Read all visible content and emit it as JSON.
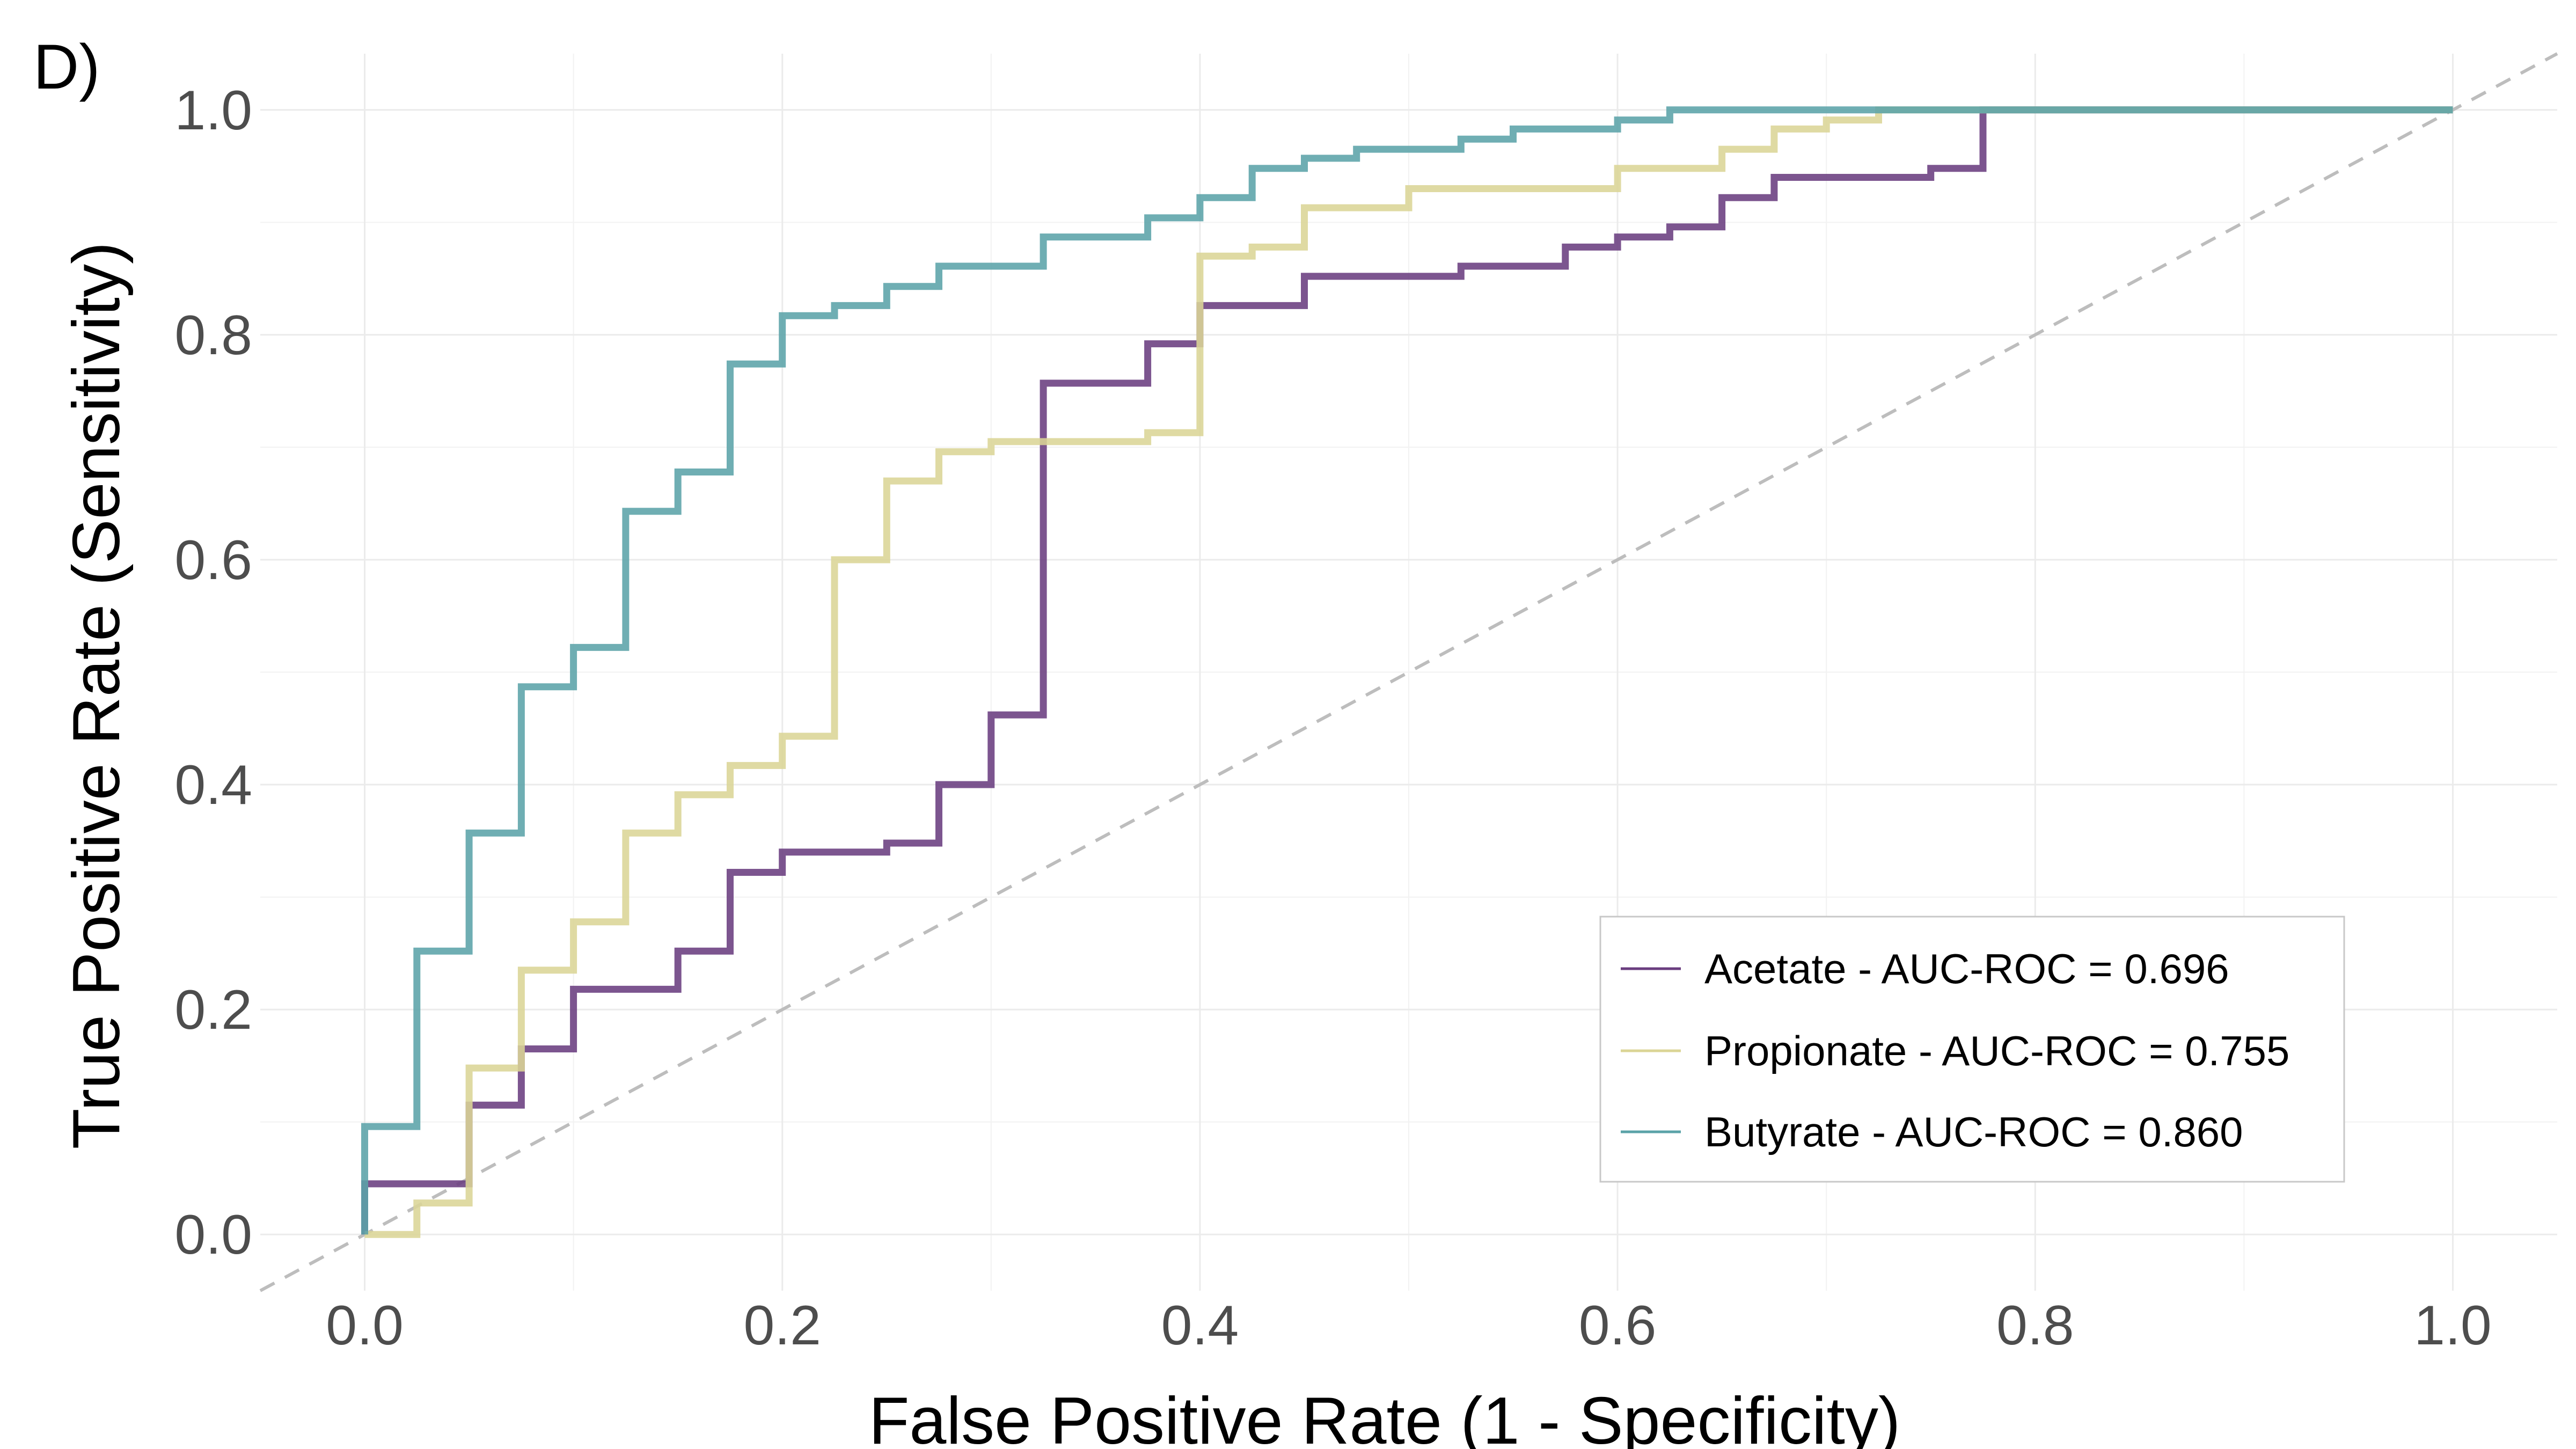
{
  "panel_label": "D)",
  "chart_data": {
    "type": "line",
    "title": "",
    "xlabel": "False Positive Rate (1 - Specificity)",
    "ylabel": "True Positive Rate (Sensitivity)",
    "xlim": [
      -0.05,
      1.05
    ],
    "ylim": [
      -0.05,
      1.05
    ],
    "x_ticks": [
      0.0,
      0.2,
      0.4,
      0.6,
      0.8,
      1.0
    ],
    "y_ticks": [
      0.0,
      0.2,
      0.4,
      0.6,
      0.8,
      1.0
    ],
    "x_tick_labels": [
      "0.0",
      "0.2",
      "0.4",
      "0.6",
      "0.8",
      "1.0"
    ],
    "y_tick_labels": [
      "0.0",
      "0.2",
      "0.4",
      "0.6",
      "0.8",
      "1.0"
    ],
    "grid": true,
    "diagonal_reference": true,
    "legend_position": "bottom-right",
    "series": [
      {
        "name": "Acetate - AUC-ROC = 0.696",
        "color": "#6a3d7f",
        "points": [
          [
            0.0,
            0.0
          ],
          [
            0.0,
            0.045
          ],
          [
            0.05,
            0.045
          ],
          [
            0.05,
            0.115
          ],
          [
            0.075,
            0.115
          ],
          [
            0.075,
            0.165
          ],
          [
            0.1,
            0.165
          ],
          [
            0.1,
            0.218
          ],
          [
            0.15,
            0.218
          ],
          [
            0.15,
            0.252
          ],
          [
            0.175,
            0.252
          ],
          [
            0.175,
            0.322
          ],
          [
            0.2,
            0.322
          ],
          [
            0.2,
            0.34
          ],
          [
            0.25,
            0.34
          ],
          [
            0.25,
            0.348
          ],
          [
            0.275,
            0.348
          ],
          [
            0.275,
            0.4
          ],
          [
            0.3,
            0.4
          ],
          [
            0.3,
            0.462
          ],
          [
            0.325,
            0.462
          ],
          [
            0.325,
            0.757
          ],
          [
            0.375,
            0.757
          ],
          [
            0.375,
            0.792
          ],
          [
            0.4,
            0.792
          ],
          [
            0.4,
            0.826
          ],
          [
            0.45,
            0.826
          ],
          [
            0.45,
            0.852
          ],
          [
            0.525,
            0.852
          ],
          [
            0.525,
            0.861
          ],
          [
            0.575,
            0.861
          ],
          [
            0.575,
            0.878
          ],
          [
            0.6,
            0.878
          ],
          [
            0.6,
            0.887
          ],
          [
            0.625,
            0.887
          ],
          [
            0.625,
            0.896
          ],
          [
            0.65,
            0.896
          ],
          [
            0.65,
            0.922
          ],
          [
            0.675,
            0.922
          ],
          [
            0.675,
            0.94
          ],
          [
            0.75,
            0.94
          ],
          [
            0.75,
            0.948
          ],
          [
            0.775,
            0.948
          ],
          [
            0.775,
            1.0
          ],
          [
            1.0,
            1.0
          ]
        ]
      },
      {
        "name": "Propionate - AUC-ROC = 0.755",
        "color": "#dbd596",
        "points": [
          [
            0.0,
            0.0
          ],
          [
            0.025,
            0.0
          ],
          [
            0.025,
            0.028
          ],
          [
            0.05,
            0.028
          ],
          [
            0.05,
            0.148
          ],
          [
            0.075,
            0.148
          ],
          [
            0.075,
            0.235
          ],
          [
            0.1,
            0.235
          ],
          [
            0.1,
            0.278
          ],
          [
            0.125,
            0.278
          ],
          [
            0.125,
            0.357
          ],
          [
            0.15,
            0.357
          ],
          [
            0.15,
            0.391
          ],
          [
            0.175,
            0.391
          ],
          [
            0.175,
            0.417
          ],
          [
            0.2,
            0.417
          ],
          [
            0.2,
            0.443
          ],
          [
            0.225,
            0.443
          ],
          [
            0.225,
            0.6
          ],
          [
            0.25,
            0.6
          ],
          [
            0.25,
            0.67
          ],
          [
            0.275,
            0.67
          ],
          [
            0.275,
            0.696
          ],
          [
            0.3,
            0.696
          ],
          [
            0.3,
            0.705
          ],
          [
            0.375,
            0.705
          ],
          [
            0.375,
            0.713
          ],
          [
            0.4,
            0.713
          ],
          [
            0.4,
            0.87
          ],
          [
            0.425,
            0.87
          ],
          [
            0.425,
            0.878
          ],
          [
            0.45,
            0.878
          ],
          [
            0.45,
            0.913
          ],
          [
            0.5,
            0.913
          ],
          [
            0.5,
            0.93
          ],
          [
            0.6,
            0.93
          ],
          [
            0.6,
            0.948
          ],
          [
            0.65,
            0.948
          ],
          [
            0.65,
            0.965
          ],
          [
            0.675,
            0.965
          ],
          [
            0.675,
            0.983
          ],
          [
            0.7,
            0.983
          ],
          [
            0.7,
            0.991
          ],
          [
            0.725,
            0.991
          ],
          [
            0.725,
            1.0
          ],
          [
            1.0,
            1.0
          ]
        ]
      },
      {
        "name": "Butyrate - AUC-ROC = 0.860",
        "color": "#5ba3a8",
        "points": [
          [
            0.0,
            0.0
          ],
          [
            0.0,
            0.096
          ],
          [
            0.025,
            0.096
          ],
          [
            0.025,
            0.252
          ],
          [
            0.05,
            0.252
          ],
          [
            0.05,
            0.357
          ],
          [
            0.075,
            0.357
          ],
          [
            0.075,
            0.487
          ],
          [
            0.1,
            0.487
          ],
          [
            0.1,
            0.522
          ],
          [
            0.125,
            0.522
          ],
          [
            0.125,
            0.643
          ],
          [
            0.15,
            0.643
          ],
          [
            0.15,
            0.678
          ],
          [
            0.175,
            0.678
          ],
          [
            0.175,
            0.774
          ],
          [
            0.2,
            0.774
          ],
          [
            0.2,
            0.817
          ],
          [
            0.225,
            0.817
          ],
          [
            0.225,
            0.826
          ],
          [
            0.25,
            0.826
          ],
          [
            0.25,
            0.843
          ],
          [
            0.275,
            0.843
          ],
          [
            0.275,
            0.861
          ],
          [
            0.325,
            0.861
          ],
          [
            0.325,
            0.887
          ],
          [
            0.375,
            0.887
          ],
          [
            0.375,
            0.904
          ],
          [
            0.4,
            0.904
          ],
          [
            0.4,
            0.922
          ],
          [
            0.425,
            0.922
          ],
          [
            0.425,
            0.948
          ],
          [
            0.45,
            0.948
          ],
          [
            0.45,
            0.957
          ],
          [
            0.475,
            0.957
          ],
          [
            0.475,
            0.965
          ],
          [
            0.525,
            0.965
          ],
          [
            0.525,
            0.974
          ],
          [
            0.55,
            0.974
          ],
          [
            0.55,
            0.983
          ],
          [
            0.6,
            0.983
          ],
          [
            0.6,
            0.991
          ],
          [
            0.625,
            0.991
          ],
          [
            0.625,
            1.0
          ],
          [
            1.0,
            1.0
          ]
        ]
      }
    ]
  }
}
